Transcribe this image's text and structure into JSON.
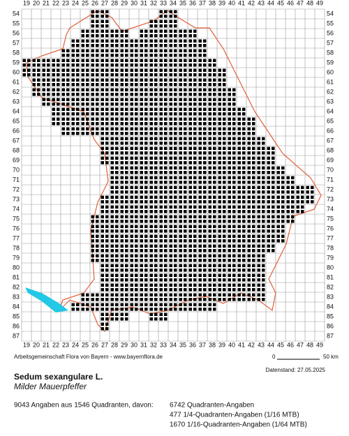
{
  "map": {
    "columns": [
      19,
      20,
      21,
      22,
      23,
      24,
      25,
      26,
      27,
      28,
      29,
      30,
      31,
      32,
      33,
      34,
      35,
      36,
      37,
      38,
      39,
      40,
      41,
      42,
      43,
      44,
      45,
      46,
      47,
      48,
      49
    ],
    "rows": [
      54,
      55,
      56,
      57,
      58,
      59,
      60,
      61,
      62,
      63,
      64,
      65,
      66,
      67,
      68,
      69,
      70,
      71,
      72,
      73,
      74,
      75,
      76,
      77,
      78,
      79,
      80,
      81,
      82,
      83,
      84,
      85,
      86,
      87
    ],
    "occurrence_ranges": [
      [
        54,
        26,
        27
      ],
      [
        54,
        33,
        34
      ],
      [
        55,
        26,
        27
      ],
      [
        55,
        32,
        34
      ],
      [
        56,
        25,
        29
      ],
      [
        56,
        31,
        36
      ],
      [
        57,
        24,
        37
      ],
      [
        58,
        23,
        37
      ],
      [
        59,
        19,
        38
      ],
      [
        60,
        19,
        39
      ],
      [
        61,
        20,
        39
      ],
      [
        62,
        20,
        40
      ],
      [
        63,
        21,
        40
      ],
      [
        64,
        22,
        41
      ],
      [
        65,
        22,
        42
      ],
      [
        66,
        23,
        42
      ],
      [
        67,
        27,
        43
      ],
      [
        68,
        27,
        44
      ],
      [
        69,
        27,
        44
      ],
      [
        70,
        28,
        45
      ],
      [
        71,
        28,
        46
      ],
      [
        72,
        28,
        48
      ],
      [
        73,
        27,
        48
      ],
      [
        74,
        27,
        47
      ],
      [
        75,
        26,
        46
      ],
      [
        76,
        26,
        45
      ],
      [
        77,
        26,
        45
      ],
      [
        78,
        26,
        44
      ],
      [
        79,
        26,
        43
      ],
      [
        80,
        27,
        43
      ],
      [
        81,
        27,
        43
      ],
      [
        82,
        27,
        43
      ],
      [
        83,
        25,
        43
      ],
      [
        84,
        24,
        38
      ],
      [
        85,
        27,
        29
      ],
      [
        85,
        32,
        33
      ],
      [
        86,
        27,
        27
      ]
    ],
    "credit": "Arbeitsgemeinschaft Flora von Bayern - www.bayernflora.de",
    "scale": {
      "start": "0",
      "end": "50 km"
    },
    "date": "Datenstand: 27.05.2025",
    "species": {
      "name": "Sedum sexangulare L.",
      "common_name": "Milder Mauerpfeffer"
    },
    "summary": "9043 Angaben aus 1546 Quadranten, davon:",
    "breakdown": [
      "6742 Quadranten-Angaben",
      "477 1/4-Quadranten-Angaben (1/16 MTB)",
      "1670 1/16-Quadranten-Angaben (1/64 MTB)"
    ]
  }
}
